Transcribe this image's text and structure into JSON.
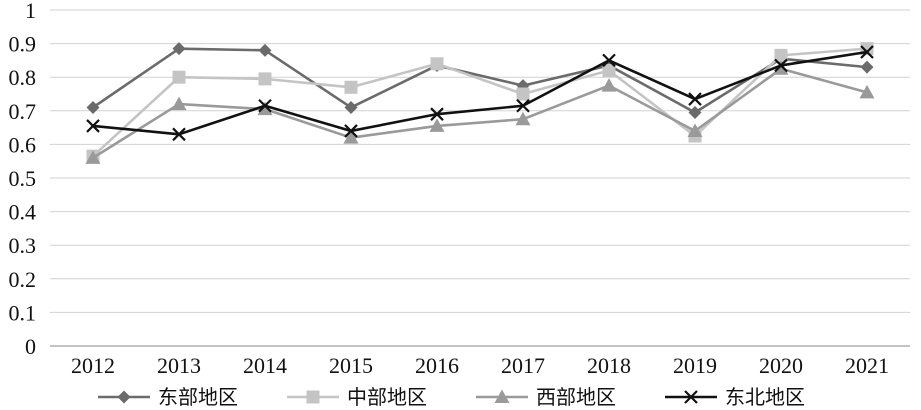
{
  "chart_data": {
    "type": "line",
    "categories": [
      "2012",
      "2013",
      "2014",
      "2015",
      "2016",
      "2017",
      "2018",
      "2019",
      "2020",
      "2021"
    ],
    "ylim": [
      0,
      1
    ],
    "yticks": [
      "0",
      "0.1",
      "0.2",
      "0.3",
      "0.4",
      "0.5",
      "0.6",
      "0.7",
      "0.8",
      "0.9",
      "1"
    ],
    "grid": true,
    "legend_position": "bottom",
    "series": [
      {
        "name": "东部地区",
        "marker": "diamond",
        "color": "#6b6b6b",
        "values": [
          0.71,
          0.885,
          0.88,
          0.71,
          0.835,
          0.775,
          0.835,
          0.695,
          0.855,
          0.83
        ]
      },
      {
        "name": "中部地区",
        "marker": "square",
        "color": "#c4c4c4",
        "values": [
          0.565,
          0.8,
          0.795,
          0.77,
          0.84,
          0.75,
          0.82,
          0.625,
          0.865,
          0.885
        ]
      },
      {
        "name": "西部地区",
        "marker": "triangle",
        "color": "#9a9a9a",
        "values": [
          0.56,
          0.72,
          0.705,
          0.62,
          0.655,
          0.675,
          0.775,
          0.64,
          0.825,
          0.755
        ]
      },
      {
        "name": "东北地区",
        "marker": "x",
        "color": "#111111",
        "values": [
          0.655,
          0.63,
          0.715,
          0.64,
          0.69,
          0.715,
          0.85,
          0.735,
          0.835,
          0.875
        ]
      }
    ]
  }
}
